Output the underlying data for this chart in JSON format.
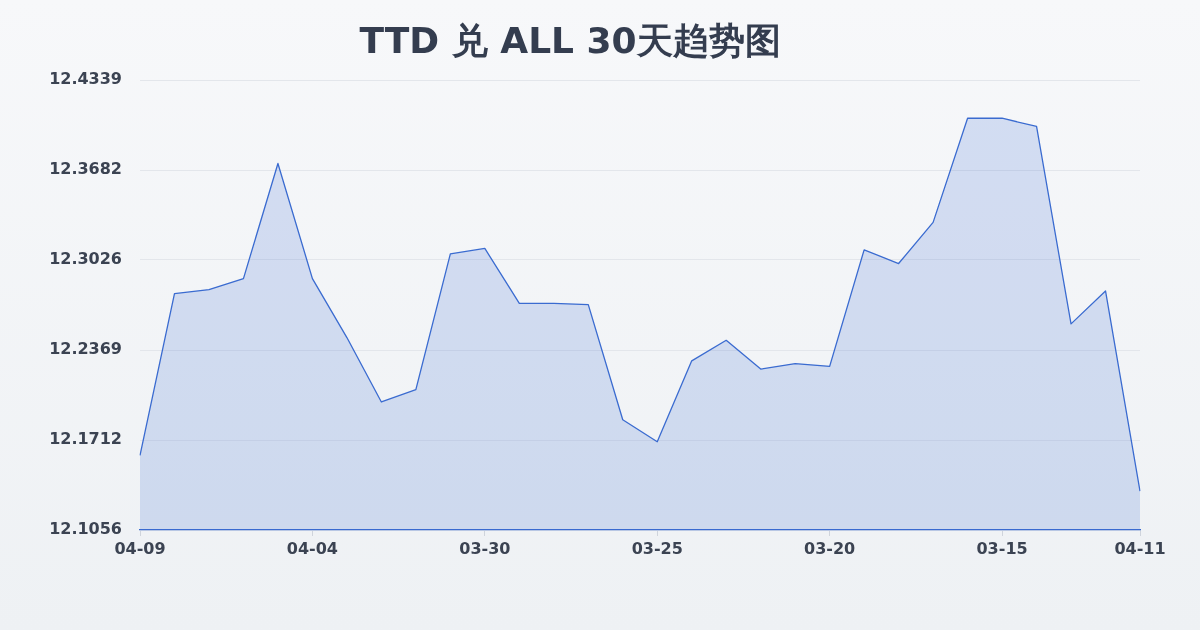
{
  "chart_data": {
    "type": "area",
    "title": "TTD 兑 ALL 30天趋势图",
    "categories": [
      "04-09",
      null,
      null,
      null,
      null,
      "04-04",
      null,
      null,
      null,
      null,
      "03-30",
      null,
      null,
      null,
      null,
      "03-25",
      null,
      null,
      null,
      null,
      "03-20",
      null,
      null,
      null,
      null,
      "03-15",
      null,
      null,
      null,
      "04-11"
    ],
    "values": [
      12.16,
      12.278,
      12.281,
      12.289,
      12.373,
      12.289,
      12.246,
      12.199,
      12.208,
      12.307,
      12.311,
      12.271,
      12.271,
      12.27,
      12.186,
      12.17,
      12.229,
      12.244,
      12.223,
      12.227,
      12.225,
      12.31,
      12.3,
      12.33,
      12.406,
      12.406,
      12.4,
      12.256,
      12.28,
      12.134
    ],
    "color": "#3a6bd0",
    "ylim": [
      12.1056,
      12.4339
    ],
    "yticks": [
      12.1056,
      12.1712,
      12.2369,
      12.3026,
      12.3682,
      12.4339
    ],
    "grid": "y"
  }
}
